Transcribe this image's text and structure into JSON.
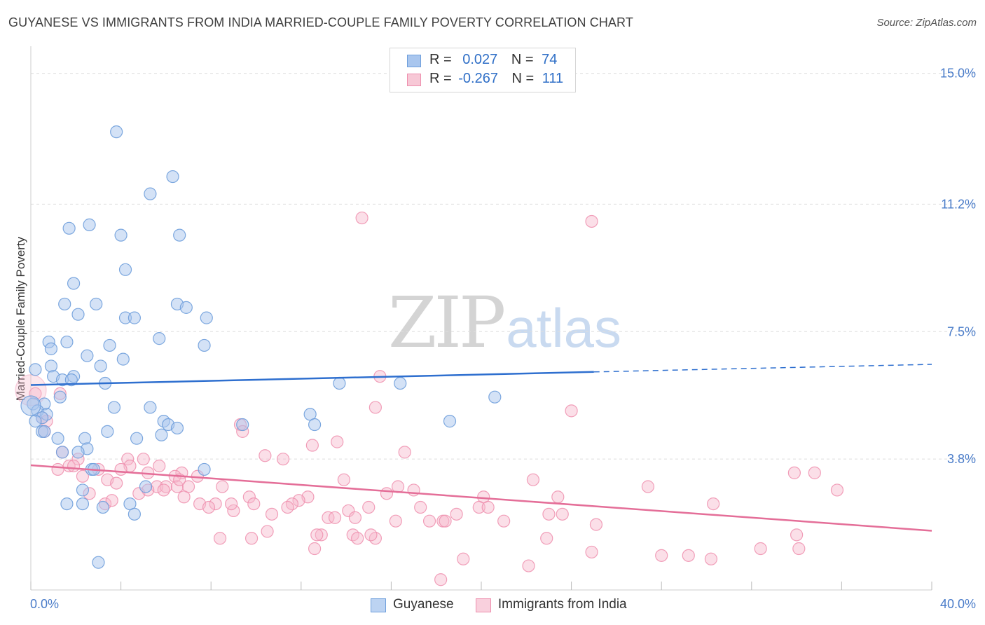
{
  "header": {
    "title": "GUYANESE VS IMMIGRANTS FROM INDIA MARRIED-COUPLE FAMILY POVERTY CORRELATION CHART",
    "source": "Source: ZipAtlas.com"
  },
  "watermark": {
    "zip": "ZIP",
    "atlas": "atlas"
  },
  "legend_top": {
    "rows": [
      {
        "r_label": "R =",
        "r_value": "0.027",
        "n_label": "N =",
        "n_value": "74"
      },
      {
        "r_label": "R =",
        "r_value": "-0.267",
        "n_label": "N =",
        "n_value": "111"
      }
    ]
  },
  "legend_bottom": {
    "items": [
      "Guyanese",
      "Immigrants from India"
    ]
  },
  "colors": {
    "guyanese_fill": "#a9c6ee",
    "guyanese_stroke": "#6f9fdc",
    "guyanese_line": "#2e6fcf",
    "india_fill": "#f7b9cc",
    "india_stroke": "#ee8fae",
    "india_line": "#e46e98",
    "tick_text": "#4a7cc9",
    "grid": "#dddddd"
  },
  "chart_data": {
    "type": "scatter",
    "title": "GUYANESE VS IMMIGRANTS FROM INDIA MARRIED-COUPLE FAMILY POVERTY CORRELATION CHART",
    "xlabel": "",
    "ylabel": "Married-Couple Family Poverty",
    "xlim": [
      0,
      40
    ],
    "ylim": [
      0,
      15.5
    ],
    "x_tick_labels": [
      {
        "value": 0,
        "label": "0.0%"
      },
      {
        "value": 40,
        "label": "40.0%"
      }
    ],
    "y_ticks": [
      {
        "value": 3.8,
        "label": "3.8%"
      },
      {
        "value": 7.5,
        "label": "7.5%"
      },
      {
        "value": 11.2,
        "label": "11.2%"
      },
      {
        "value": 15.0,
        "label": "15.0%"
      }
    ],
    "grid": true,
    "legend_position": "bottom",
    "series": [
      {
        "name": "Guyanese",
        "r": 0.027,
        "n": 74,
        "trend": {
          "x_start": 0,
          "y_start": 5.95,
          "x_solid_end": 25,
          "y_solid_end": 6.33,
          "x_end": 40,
          "y_end": 6.55
        },
        "points": [
          [
            3.8,
            13.3
          ],
          [
            6.3,
            12.0
          ],
          [
            5.3,
            11.5
          ],
          [
            1.7,
            10.5
          ],
          [
            2.6,
            10.6
          ],
          [
            4.0,
            10.3
          ],
          [
            6.6,
            10.3
          ],
          [
            4.2,
            9.3
          ],
          [
            1.9,
            8.9
          ],
          [
            1.5,
            8.3
          ],
          [
            2.9,
            8.3
          ],
          [
            6.5,
            8.3
          ],
          [
            6.9,
            8.2
          ],
          [
            2.1,
            8.0
          ],
          [
            4.2,
            7.9
          ],
          [
            4.6,
            7.9
          ],
          [
            7.8,
            7.9
          ],
          [
            5.7,
            7.3
          ],
          [
            0.8,
            7.2
          ],
          [
            1.6,
            7.2
          ],
          [
            3.5,
            7.1
          ],
          [
            7.7,
            7.1
          ],
          [
            0.9,
            7.0
          ],
          [
            2.5,
            6.8
          ],
          [
            4.1,
            6.7
          ],
          [
            0.9,
            6.5
          ],
          [
            3.1,
            6.5
          ],
          [
            0.2,
            6.4
          ],
          [
            1.0,
            6.2
          ],
          [
            1.9,
            6.2
          ],
          [
            1.4,
            6.1
          ],
          [
            1.8,
            6.1
          ],
          [
            3.3,
            6.0
          ],
          [
            13.7,
            6.0
          ],
          [
            16.4,
            6.0
          ],
          [
            1.3,
            5.6
          ],
          [
            20.6,
            5.6
          ],
          [
            0.1,
            5.4
          ],
          [
            0.6,
            5.4
          ],
          [
            3.7,
            5.3
          ],
          [
            5.3,
            5.3
          ],
          [
            0.3,
            5.2
          ],
          [
            0.7,
            5.1
          ],
          [
            0.5,
            5.0
          ],
          [
            12.4,
            5.1
          ],
          [
            0.2,
            4.9
          ],
          [
            5.9,
            4.9
          ],
          [
            6.1,
            4.8
          ],
          [
            9.4,
            4.8
          ],
          [
            18.6,
            4.9
          ],
          [
            12.6,
            4.8
          ],
          [
            6.5,
            4.7
          ],
          [
            0.5,
            4.6
          ],
          [
            0.6,
            4.6
          ],
          [
            3.4,
            4.6
          ],
          [
            5.8,
            4.5
          ],
          [
            1.2,
            4.4
          ],
          [
            2.4,
            4.4
          ],
          [
            4.7,
            4.4
          ],
          [
            2.5,
            4.1
          ],
          [
            1.4,
            4.0
          ],
          [
            2.1,
            4.0
          ],
          [
            2.7,
            3.5
          ],
          [
            2.8,
            3.5
          ],
          [
            7.7,
            3.5
          ],
          [
            5.1,
            3.0
          ],
          [
            2.3,
            2.9
          ],
          [
            1.6,
            2.5
          ],
          [
            2.3,
            2.5
          ],
          [
            3.2,
            2.4
          ],
          [
            4.4,
            2.5
          ],
          [
            4.6,
            2.2
          ],
          [
            3.0,
            0.8
          ],
          [
            0.0,
            5.35
          ]
        ]
      },
      {
        "name": "Immigrants from India",
        "r": -0.267,
        "n": 111,
        "trend": {
          "x_start": 0,
          "y_start": 3.62,
          "x_end": 40,
          "y_end": 1.72
        },
        "points": [
          [
            14.7,
            10.8
          ],
          [
            24.9,
            10.7
          ],
          [
            15.5,
            6.2
          ],
          [
            0.2,
            5.7
          ],
          [
            1.3,
            5.7
          ],
          [
            15.3,
            5.3
          ],
          [
            24.0,
            5.2
          ],
          [
            0.5,
            5.0
          ],
          [
            0.7,
            4.9
          ],
          [
            9.3,
            4.8
          ],
          [
            9.4,
            4.6
          ],
          [
            0.6,
            4.6
          ],
          [
            13.6,
            4.3
          ],
          [
            12.5,
            4.2
          ],
          [
            16.6,
            4.0
          ],
          [
            1.4,
            4.0
          ],
          [
            10.4,
            3.9
          ],
          [
            11.2,
            3.8
          ],
          [
            2.1,
            3.8
          ],
          [
            4.3,
            3.8
          ],
          [
            5.0,
            3.8
          ],
          [
            1.7,
            3.6
          ],
          [
            1.9,
            3.6
          ],
          [
            3.0,
            3.5
          ],
          [
            4.4,
            3.6
          ],
          [
            5.7,
            3.6
          ],
          [
            1.2,
            3.5
          ],
          [
            4.0,
            3.5
          ],
          [
            6.7,
            3.4
          ],
          [
            7.4,
            3.3
          ],
          [
            2.3,
            3.3
          ],
          [
            3.4,
            3.2
          ],
          [
            5.2,
            3.4
          ],
          [
            6.4,
            3.3
          ],
          [
            13.9,
            3.2
          ],
          [
            22.3,
            3.2
          ],
          [
            33.9,
            3.4
          ],
          [
            34.8,
            3.4
          ],
          [
            3.8,
            3.1
          ],
          [
            5.6,
            3.0
          ],
          [
            6.0,
            3.0
          ],
          [
            6.5,
            3.0
          ],
          [
            7.0,
            3.0
          ],
          [
            8.5,
            3.0
          ],
          [
            16.3,
            3.0
          ],
          [
            27.4,
            3.0
          ],
          [
            35.8,
            2.9
          ],
          [
            2.6,
            2.8
          ],
          [
            4.8,
            2.8
          ],
          [
            6.8,
            2.7
          ],
          [
            9.7,
            2.7
          ],
          [
            15.8,
            2.8
          ],
          [
            17.0,
            2.9
          ],
          [
            20.1,
            2.7
          ],
          [
            23.4,
            2.7
          ],
          [
            5.9,
            2.9
          ],
          [
            12.3,
            2.7
          ],
          [
            11.9,
            2.6
          ],
          [
            3.3,
            2.5
          ],
          [
            7.5,
            2.5
          ],
          [
            8.2,
            2.5
          ],
          [
            9.9,
            2.5
          ],
          [
            11.6,
            2.5
          ],
          [
            15.0,
            2.4
          ],
          [
            17.3,
            2.4
          ],
          [
            19.9,
            2.4
          ],
          [
            20.3,
            2.4
          ],
          [
            30.3,
            2.5
          ],
          [
            7.9,
            2.4
          ],
          [
            9.0,
            2.3
          ],
          [
            10.7,
            2.2
          ],
          [
            14.1,
            2.3
          ],
          [
            18.9,
            2.2
          ],
          [
            23.0,
            2.2
          ],
          [
            23.6,
            2.2
          ],
          [
            13.2,
            2.1
          ],
          [
            13.5,
            2.1
          ],
          [
            14.4,
            2.1
          ],
          [
            17.7,
            2.0
          ],
          [
            18.3,
            2.0
          ],
          [
            18.4,
            2.0
          ],
          [
            21.0,
            2.0
          ],
          [
            16.2,
            2.0
          ],
          [
            25.1,
            1.9
          ],
          [
            10.5,
            1.7
          ],
          [
            12.9,
            1.6
          ],
          [
            14.3,
            1.6
          ],
          [
            15.3,
            1.5
          ],
          [
            8.4,
            1.5
          ],
          [
            9.8,
            1.5
          ],
          [
            12.7,
            1.6
          ],
          [
            14.5,
            1.5
          ],
          [
            15.1,
            1.6
          ],
          [
            22.9,
            1.5
          ],
          [
            34.0,
            1.6
          ],
          [
            12.6,
            1.2
          ],
          [
            32.4,
            1.2
          ],
          [
            34.1,
            1.2
          ],
          [
            24.9,
            1.1
          ],
          [
            28.0,
            1.0
          ],
          [
            29.2,
            1.0
          ],
          [
            30.2,
            0.9
          ],
          [
            19.2,
            0.9
          ],
          [
            22.1,
            0.7
          ],
          [
            18.2,
            0.3
          ],
          [
            6.6,
            3.2
          ],
          [
            5.2,
            2.9
          ],
          [
            11.4,
            2.4
          ],
          [
            3.6,
            2.6
          ],
          [
            8.9,
            2.5
          ],
          [
            0.0,
            5.8
          ]
        ]
      }
    ]
  }
}
